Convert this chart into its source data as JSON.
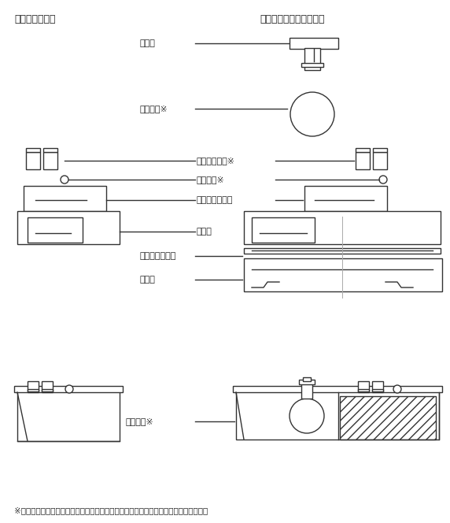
{
  "title_left": "運搬保管トレー",
  "title_right": "標準サンプル調整トレー",
  "label_omori": "おもり",
  "label_flask": "フラスコ※",
  "label_sample_bin": "サンプルビン※",
  "label_syringe": "シリンジ※",
  "label_alumi": "アルミブロック",
  "label_bat": "バット",
  "label_hassou": "発泡スチロール",
  "label_tray": "トレー",
  "label_liquid_n2": "液体窒素※",
  "footnote": "※印の品物は揮発性有機化合物標準溶液調製キットの製品内容には含まれていません。",
  "line_color": "#333333",
  "bg_color": "#ffffff",
  "text_color": "#222222"
}
